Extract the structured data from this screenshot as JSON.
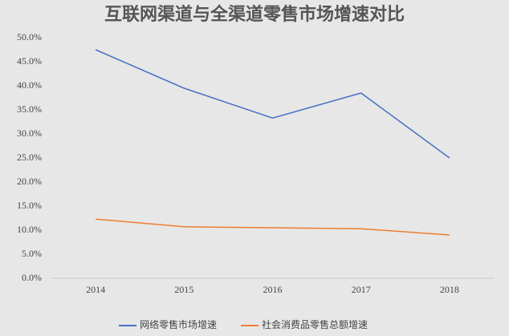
{
  "chart_data": {
    "type": "line",
    "title": "互联网渠道与全渠道零售市场增速对比",
    "categories": [
      "2014",
      "2015",
      "2016",
      "2017",
      "2018"
    ],
    "series": [
      {
        "name": "网络零售市场增速",
        "color": "#4472c4",
        "values": [
          47.5,
          39.5,
          33.3,
          38.5,
          25.0
        ]
      },
      {
        "name": "社会消费品零售总额增速",
        "color": "#ed7d31",
        "values": [
          12.3,
          10.7,
          10.5,
          10.3,
          9.0
        ]
      }
    ],
    "ylim": [
      0,
      50
    ],
    "yticks": [
      {
        "value": 0,
        "label": "0.0%"
      },
      {
        "value": 5,
        "label": "5.0%"
      },
      {
        "value": 10,
        "label": "10.0%"
      },
      {
        "value": 15,
        "label": "15.0%"
      },
      {
        "value": 20,
        "label": "20.0%"
      },
      {
        "value": 25,
        "label": "25.0%"
      },
      {
        "value": 30,
        "label": "30.0%"
      },
      {
        "value": 35,
        "label": "35.0%"
      },
      {
        "value": 40,
        "label": "40.0%"
      },
      {
        "value": 45,
        "label": "45.0%"
      },
      {
        "value": 50,
        "label": "50.0%"
      }
    ],
    "grid": false,
    "legend": "bottom"
  }
}
